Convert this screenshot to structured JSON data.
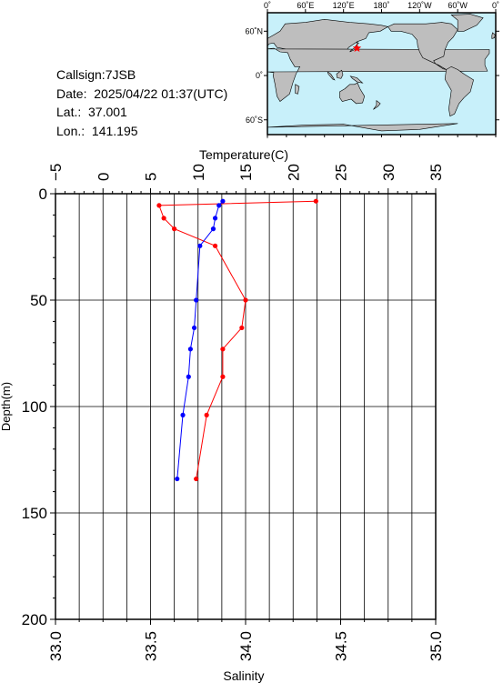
{
  "info": {
    "callsign": "Callsign:7JSB",
    "date": "Date:  2025/04/22 01:37(UTC)",
    "lat": "Lat.:  37.001",
    "lon": "Lon.:  141.195"
  },
  "map": {
    "top_labels": [
      "0˚",
      "60˚E",
      "120˚E",
      "180˚",
      "120˚W",
      "60˚W",
      "0˚"
    ],
    "left_labels": [
      "60˚N",
      "0˚",
      "60˚S"
    ],
    "station_lon": 141.195,
    "station_lat": 37.001,
    "ocean_color": "#c8f0fa",
    "land_color": "#bebebe",
    "marker_color": "#ff0000",
    "marker_icon": "star-icon"
  },
  "chart_data": {
    "type": "line",
    "xlabel_top": "Temperature(C)",
    "xlabel_bottom": "Salinity",
    "ylabel": "Depth(m)",
    "temperature_range": [
      -5,
      35
    ],
    "temperature_ticks": [
      "−5",
      "0",
      "5",
      "10",
      "15",
      "20",
      "25",
      "30",
      "35"
    ],
    "salinity_range": [
      33.0,
      35.0
    ],
    "salinity_ticks": [
      "33.0",
      "33.5",
      "34.0",
      "34.5",
      "35.0"
    ],
    "depth_range": [
      0,
      200
    ],
    "depth_ticks": [
      "0",
      "50",
      "100",
      "150",
      "200"
    ],
    "grid": true,
    "series": [
      {
        "name": "Temperature",
        "color": "#ff0000",
        "axis": "top",
        "points": [
          {
            "depth": 3.5,
            "value": 22.4
          },
          {
            "depth": 5.5,
            "value": 5.9
          },
          {
            "depth": 11.5,
            "value": 6.4
          },
          {
            "depth": 16.5,
            "value": 7.5
          },
          {
            "depth": 24.5,
            "value": 11.8
          },
          {
            "depth": 50,
            "value": 15.0
          },
          {
            "depth": 63,
            "value": 14.6
          },
          {
            "depth": 73,
            "value": 12.6
          },
          {
            "depth": 86,
            "value": 12.6
          },
          {
            "depth": 104,
            "value": 10.9
          },
          {
            "depth": 134,
            "value": 9.8
          }
        ]
      },
      {
        "name": "Salinity",
        "color": "#0000ff",
        "axis": "bottom",
        "points": [
          {
            "depth": 3.5,
            "value": 33.88
          },
          {
            "depth": 5.5,
            "value": 33.86
          },
          {
            "depth": 11.5,
            "value": 33.84
          },
          {
            "depth": 16.5,
            "value": 33.83
          },
          {
            "depth": 24.5,
            "value": 33.76
          },
          {
            "depth": 50,
            "value": 33.74
          },
          {
            "depth": 63,
            "value": 33.73
          },
          {
            "depth": 73,
            "value": 33.71
          },
          {
            "depth": 86,
            "value": 33.7
          },
          {
            "depth": 104,
            "value": 33.67
          },
          {
            "depth": 134,
            "value": 33.64
          }
        ]
      }
    ]
  }
}
